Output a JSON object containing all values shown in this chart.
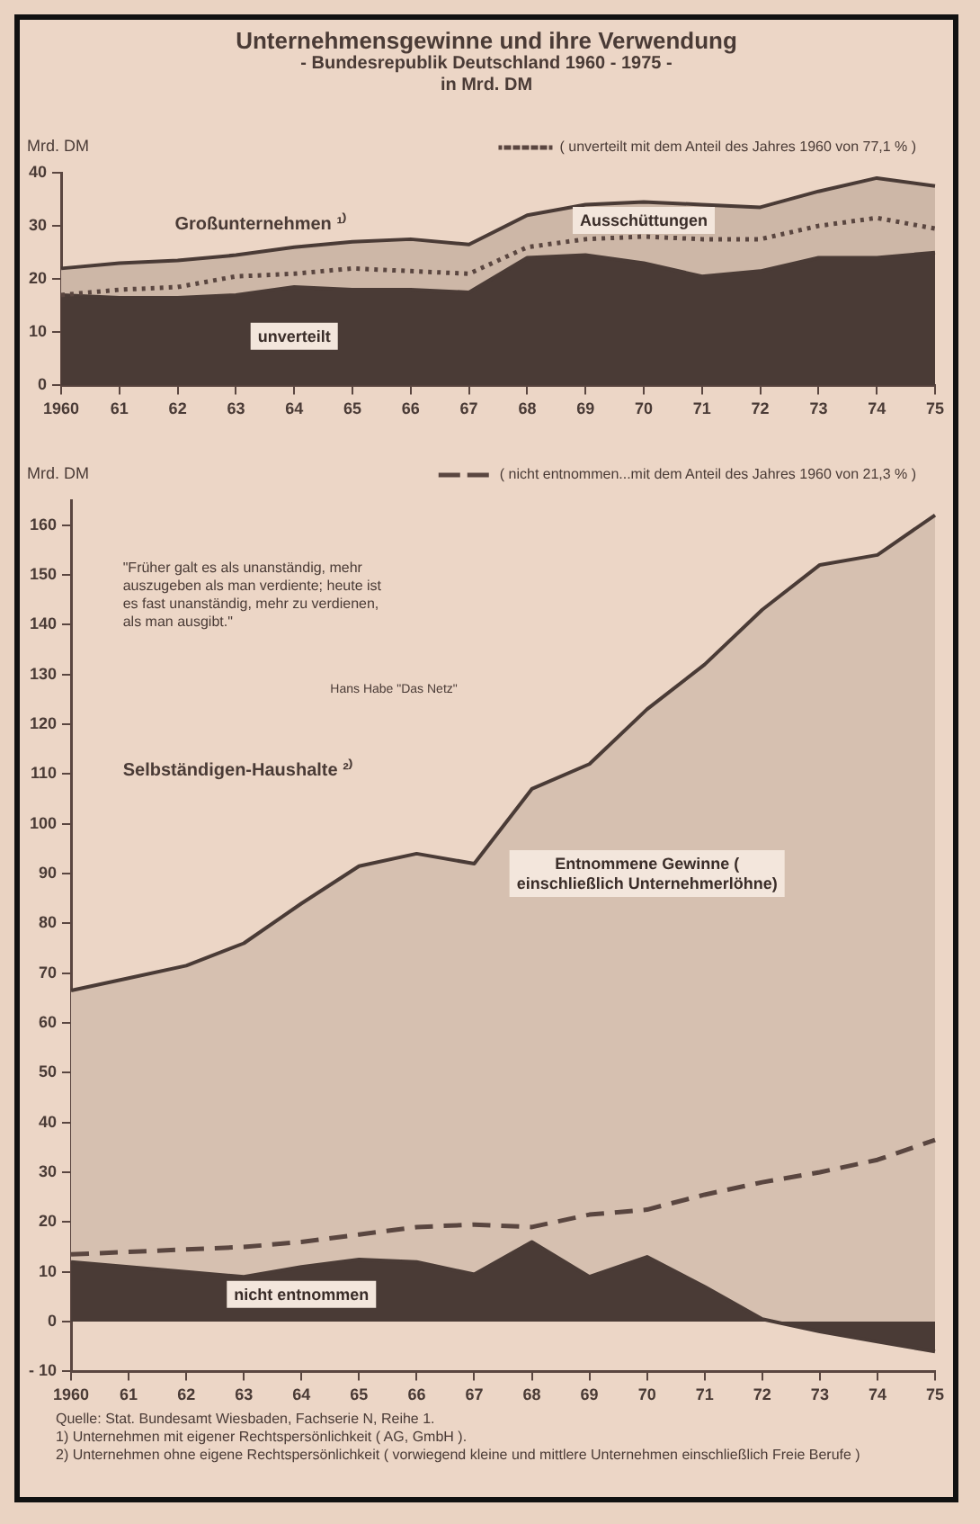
{
  "chart_data": [
    {
      "type": "area",
      "title": "Unternehmensgewinne und ihre Verwendung",
      "subtitle": "- Bundesrepublik Deutschland 1960 - 1975 -\nin Mrd. DM",
      "ylabel": "Mrd. DM",
      "categories": [
        "1960",
        "61",
        "62",
        "63",
        "64",
        "65",
        "66",
        "67",
        "68",
        "69",
        "70",
        "71",
        "72",
        "73",
        "74",
        "75"
      ],
      "stacked": true,
      "ylim": [
        0,
        40
      ],
      "yticks": [
        0,
        10,
        20,
        30,
        40
      ],
      "grid": false,
      "marker": "none",
      "legend": "top right",
      "series": [
        {
          "name": "unverteilt",
          "color": "#4a3b36",
          "values": [
            17,
            16.5,
            16.5,
            17,
            18.5,
            18,
            18,
            17.5,
            24,
            24.5,
            23,
            20.5,
            21.5,
            24,
            24,
            25
          ]
        },
        {
          "name": "Ausschüttungen",
          "color": "#cdb7a7",
          "values": [
            5,
            6.5,
            7,
            7.5,
            7.5,
            9,
            9.5,
            9,
            8,
            9.5,
            11.5,
            13.5,
            12,
            12.5,
            15,
            12.5
          ]
        },
        {
          "type": "line",
          "name": "( unverteilt mit dem Anteil des Jahres 1960 von 77,1 % )",
          "color": "#5a4640",
          "line_style": "dotted",
          "values": [
            17,
            18,
            18.5,
            20.5,
            21,
            22,
            21.5,
            21,
            26,
            27.5,
            28,
            27.5,
            27.5,
            30,
            31.5,
            29.5
          ]
        }
      ],
      "annotations": [
        "Großunternehmen ¹⁾"
      ]
    },
    {
      "type": "area",
      "ylabel": "Mrd. DM",
      "categories": [
        "1960",
        "61",
        "62",
        "63",
        "64",
        "65",
        "66",
        "67",
        "68",
        "69",
        "70",
        "71",
        "72",
        "73",
        "74",
        "75"
      ],
      "ylim": [
        -10,
        165
      ],
      "yticks": [
        {
          "value": -10,
          "label": "- 10"
        },
        0,
        10,
        20,
        30,
        40,
        50,
        60,
        70,
        80,
        90,
        100,
        110,
        120,
        130,
        140,
        150,
        160
      ],
      "grid": false,
      "marker": "none",
      "legend": "top right",
      "series": [
        {
          "name": "nicht entnommen",
          "color": "#4a3b36",
          "values": [
            12,
            11,
            10,
            9,
            11,
            12.5,
            12,
            9.5,
            16,
            9,
            13,
            7,
            0.5,
            -2,
            -4,
            -6
          ]
        },
        {
          "name": "Entnommene Gewinne ( einschließlich Unternehmerlöhne)",
          "color": "#d6c0b0",
          "values": [
            66.5,
            69,
            71.5,
            76,
            84,
            91.5,
            94,
            92,
            107,
            112,
            123,
            132,
            143,
            152,
            154,
            162
          ]
        },
        {
          "type": "line",
          "name": "( nicht entnommen...mit dem Anteil des Jahres 1960 von 21,3 % )",
          "color": "#5a4640",
          "line_style": "dashed",
          "values": [
            13.5,
            14,
            14.5,
            15,
            16,
            17.5,
            19,
            19.5,
            19,
            21.5,
            22.5,
            25.5,
            28,
            30,
            32.5,
            36.5
          ]
        }
      ],
      "annotations": [
        "\"Früher galt es als unanständig, mehr auszugeben als man verdiente; heute ist es fast unanständig, mehr zu verdienen, als man ausgibt.\"",
        "Hans Habe \"Das Netz\"",
        "Selbständigen-Haushalte ²⁾",
        "Quelle: Stat. Bundesamt Wiesbaden, Fachserie N, Reihe 1.",
        "1) Unternehmen mit eigener Rechtspersönlichkeit ( AG, GmbH ).",
        "2) Unternehmen ohne eigene Rechtspersönlichkeit ( vorwiegend kleine und mittlere Unternehmen einschließlich Freie Berufe )"
      ]
    }
  ]
}
